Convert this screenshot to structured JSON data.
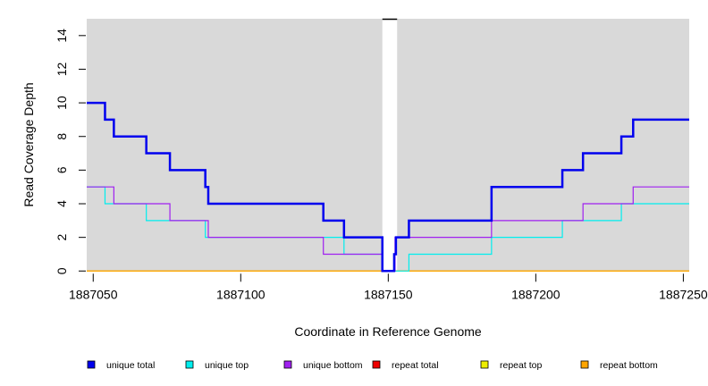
{
  "chart_data": {
    "type": "line",
    "step": true,
    "title": "",
    "xlabel": "Coordinate in Reference Genome",
    "ylabel": "Read Coverage Depth",
    "xlim": [
      1887047.8,
      1887252
    ],
    "ylim": [
      0,
      15
    ],
    "xticks": [
      1887050,
      1887100,
      1887150,
      1887200,
      1887250
    ],
    "xtick_labels": [
      "1887050",
      "1887100",
      "1887150",
      "1887200",
      "1887250"
    ],
    "yticks": [
      0,
      2,
      4,
      6,
      8,
      10,
      12,
      14
    ],
    "ytick_labels": [
      "0",
      "2",
      "4",
      "6",
      "8",
      "10",
      "12",
      "14"
    ],
    "background": "#d9d9d9",
    "gap_region": {
      "x": [
        1887148,
        1887153
      ],
      "color": "#ffffff",
      "top_marker_color": "#000000"
    },
    "legend_position": "bottom",
    "series": [
      {
        "name": "unique total",
        "color": "#0000ee",
        "x": [
          1887047.8,
          1887054,
          1887057,
          1887068,
          1887076,
          1887088,
          1887089,
          1887128,
          1887135,
          1887148,
          1887152,
          1887152.6,
          1887157,
          1887185,
          1887209,
          1887216,
          1887229,
          1887233,
          1887252
        ],
        "y": [
          10,
          9,
          8,
          7,
          6,
          5,
          4,
          3,
          2,
          0,
          1,
          2,
          3,
          5,
          6,
          7,
          8,
          9,
          9
        ]
      },
      {
        "name": "unique top",
        "color": "#00eeee",
        "x": [
          1887047.8,
          1887054,
          1887068,
          1887088,
          1887135,
          1887148,
          1887157,
          1887185,
          1887209,
          1887229,
          1887252
        ],
        "y": [
          5,
          4,
          3,
          2,
          1,
          0,
          1,
          2,
          3,
          4,
          4
        ]
      },
      {
        "name": "unique bottom",
        "color": "#a020f0",
        "x": [
          1887047.8,
          1887057,
          1887076,
          1887089,
          1887128,
          1887148,
          1887152.3,
          1887185,
          1887216,
          1887233,
          1887252
        ],
        "y": [
          5,
          4,
          3,
          2,
          1,
          0,
          2,
          3,
          4,
          5,
          5
        ]
      },
      {
        "name": "repeat total",
        "color": "#ee0000",
        "x": [
          1887047.8,
          1887252
        ],
        "y": [
          0,
          0
        ]
      },
      {
        "name": "repeat top",
        "color": "#eeee00",
        "x": [
          1887047.8,
          1887252
        ],
        "y": [
          0,
          0
        ]
      },
      {
        "name": "repeat bottom",
        "color": "#ffa500",
        "x": [
          1887047.8,
          1887252
        ],
        "y": [
          0,
          0
        ]
      }
    ]
  }
}
